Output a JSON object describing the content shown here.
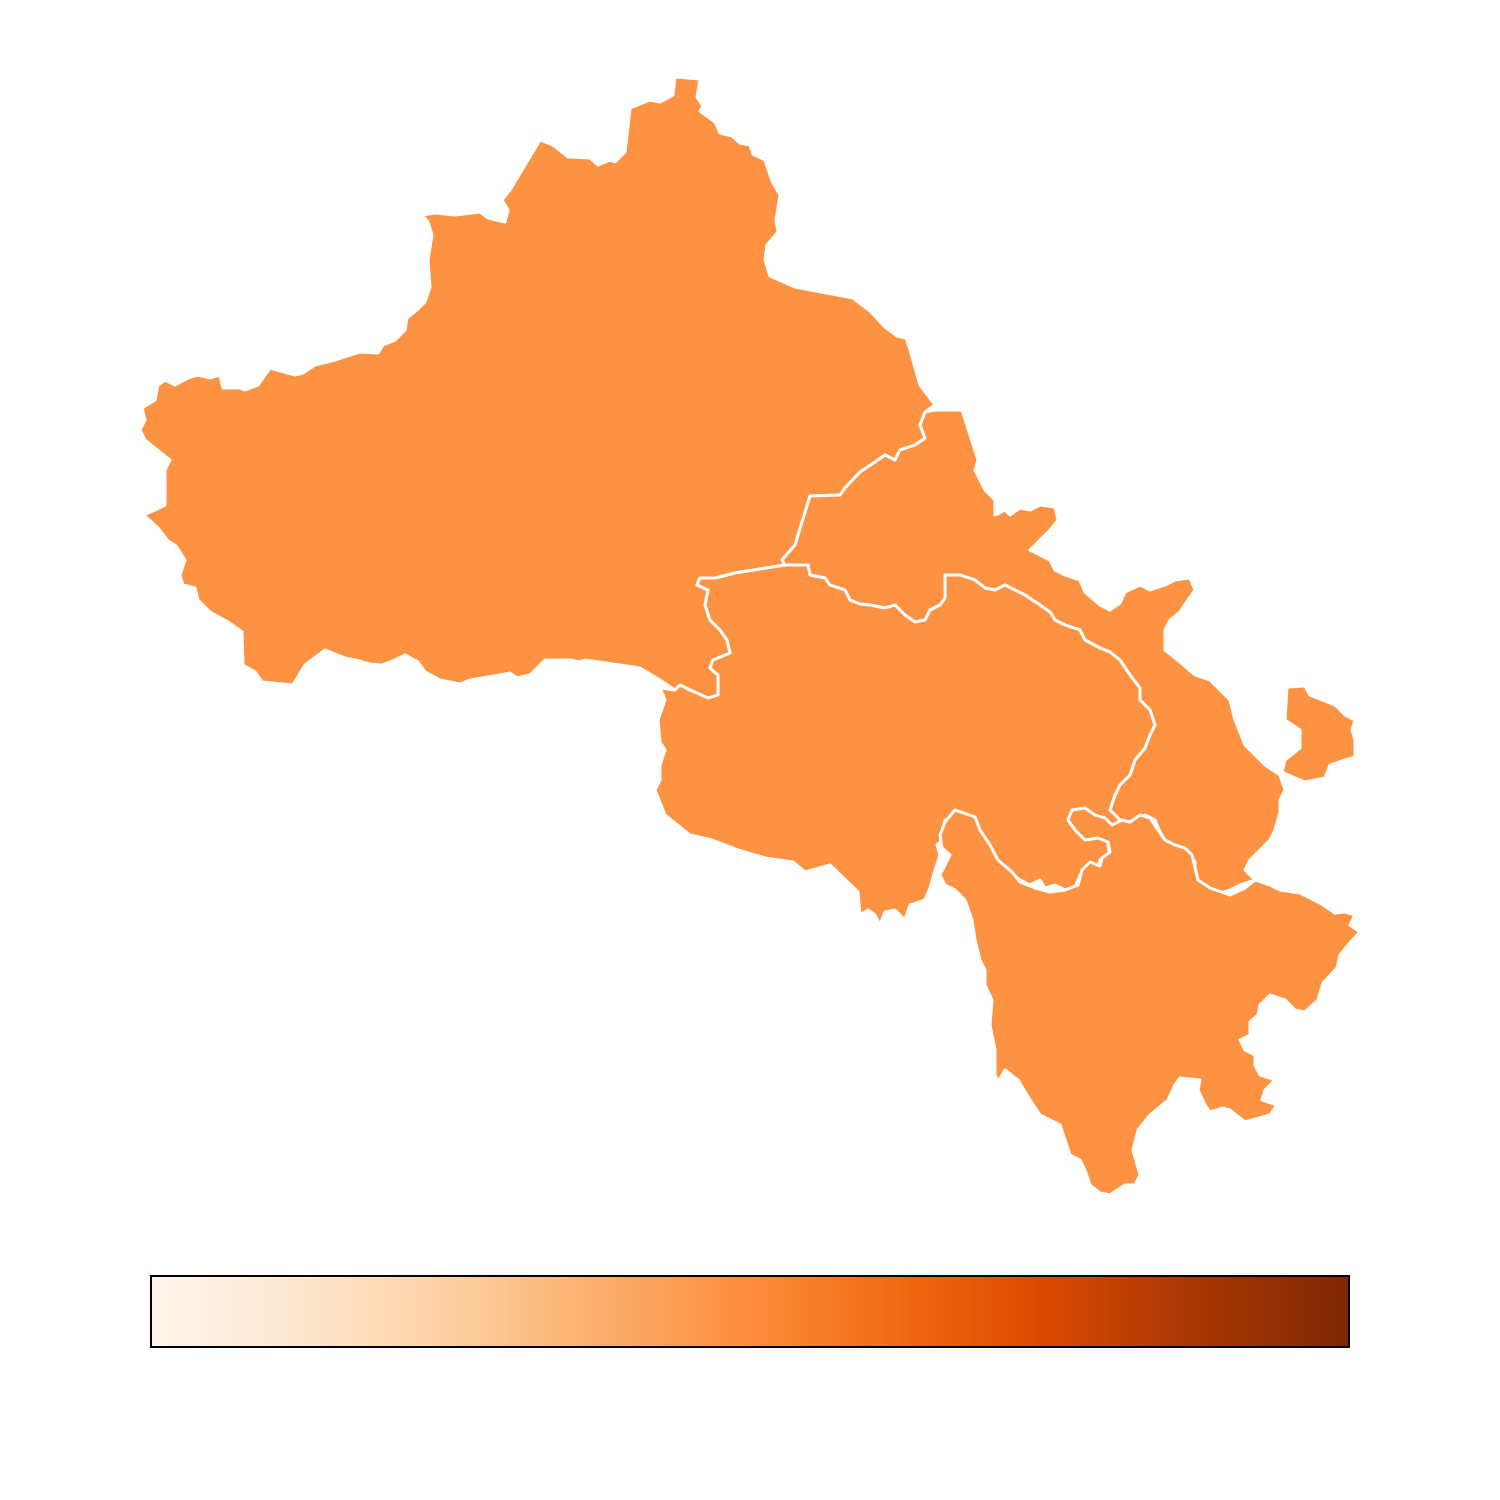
{
  "map": {
    "regions": [
      {
        "id": "region-northwest",
        "fill": "#fd9243"
      },
      {
        "id": "region-northeast",
        "fill": "#fd9243"
      },
      {
        "id": "region-central",
        "fill": "#fd9243"
      },
      {
        "id": "region-south",
        "fill": "#fd9243"
      }
    ],
    "colorbar": {
      "colormap": "Oranges",
      "stops": [
        "#fff5eb",
        "#fee6ce",
        "#fdd0a2",
        "#fdae6b",
        "#fd8d3c",
        "#f16913",
        "#d94801",
        "#a63603",
        "#7f2704"
      ],
      "tick_labels": []
    }
  }
}
